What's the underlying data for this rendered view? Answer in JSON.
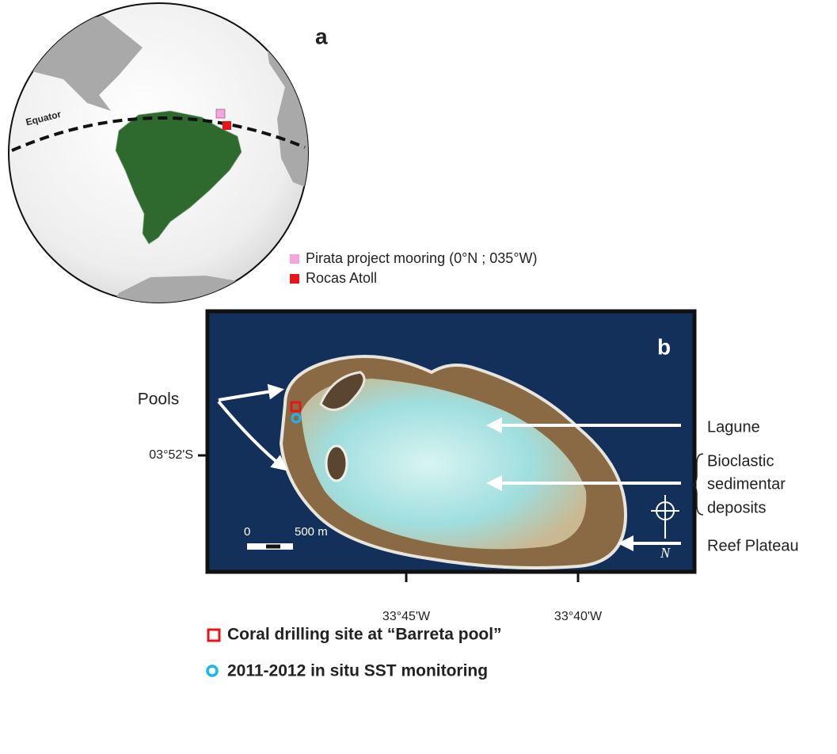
{
  "panel_a": {
    "label": "a",
    "equator_label": "Equator",
    "legend": [
      {
        "label": "Pirata project mooring (0°N ; 035°W)",
        "color": "#f2a7d8"
      },
      {
        "label": "Rocas Atoll",
        "color": "#e8141a"
      }
    ]
  },
  "panel_b": {
    "label": "b",
    "pools_label": "Pools",
    "latitude_label": "03°52'S",
    "longitude_labels": [
      "33°45'W",
      "33°40'W"
    ],
    "annotations": [
      "Lagune",
      "Bioclastic",
      "sedimentar",
      "deposits",
      "Reef Plateau"
    ],
    "scale_bar": [
      "0",
      "500 m"
    ],
    "north_label": "N"
  },
  "legend": [
    {
      "label": "Coral drilling site at “Barreta pool”",
      "color": "#e8141a"
    },
    {
      "label": "2011-2012 in situ SST monitoring",
      "color": "#1ab8ea"
    }
  ]
}
